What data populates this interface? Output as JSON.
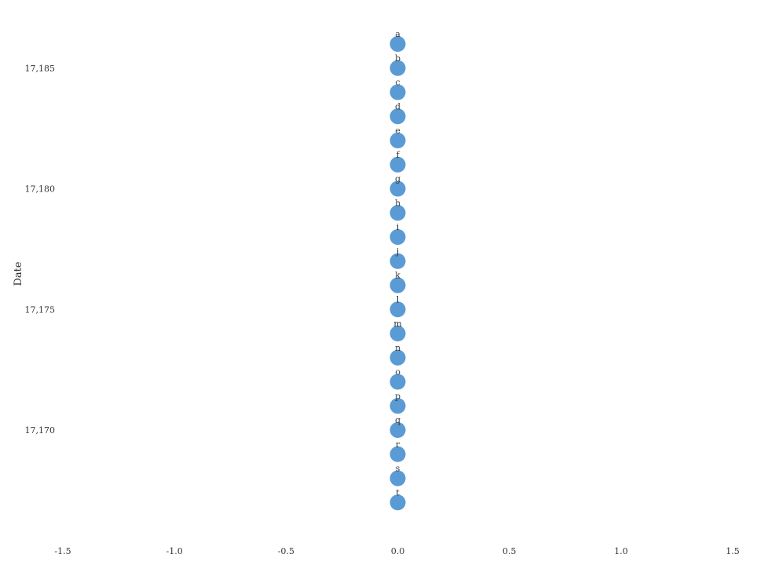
{
  "chart_data": {
    "type": "scatter",
    "title": "",
    "xlabel": "",
    "ylabel": "Date",
    "xlim": [
      -1.5,
      1.5
    ],
    "ylim": [
      17166.5,
      17186.0
    ],
    "x_ticks": [
      "-1.5",
      "-1.0",
      "-0.5",
      "0.0",
      "0.5",
      "1.0",
      "1.5"
    ],
    "x_tick_values": [
      -1.5,
      -1.0,
      -0.5,
      0.0,
      0.5,
      1.0,
      1.5
    ],
    "y_ticks": [
      "17,185",
      "17,180",
      "17,175",
      "17,170"
    ],
    "y_tick_values": [
      17185,
      17180,
      17175,
      17170
    ],
    "grid": false,
    "marker_color": "#5b9bd5",
    "points": [
      {
        "label": "a",
        "x": 0.0,
        "y": 17186
      },
      {
        "label": "b",
        "x": 0.0,
        "y": 17185
      },
      {
        "label": "c",
        "x": 0.0,
        "y": 17184
      },
      {
        "label": "d",
        "x": 0.0,
        "y": 17183
      },
      {
        "label": "e",
        "x": 0.0,
        "y": 17182
      },
      {
        "label": "f",
        "x": 0.0,
        "y": 17181
      },
      {
        "label": "g",
        "x": 0.0,
        "y": 17180
      },
      {
        "label": "h",
        "x": 0.0,
        "y": 17179
      },
      {
        "label": "i",
        "x": 0.0,
        "y": 17178
      },
      {
        "label": "j",
        "x": 0.0,
        "y": 17177
      },
      {
        "label": "k",
        "x": 0.0,
        "y": 17176
      },
      {
        "label": "l",
        "x": 0.0,
        "y": 17175
      },
      {
        "label": "m",
        "x": 0.0,
        "y": 17174
      },
      {
        "label": "n",
        "x": 0.0,
        "y": 17173
      },
      {
        "label": "o",
        "x": 0.0,
        "y": 17172
      },
      {
        "label": "p",
        "x": 0.0,
        "y": 17171
      },
      {
        "label": "q",
        "x": 0.0,
        "y": 17170
      },
      {
        "label": "r",
        "x": 0.0,
        "y": 17169
      },
      {
        "label": "s",
        "x": 0.0,
        "y": 17168
      },
      {
        "label": "t",
        "x": 0.0,
        "y": 17167
      }
    ]
  }
}
